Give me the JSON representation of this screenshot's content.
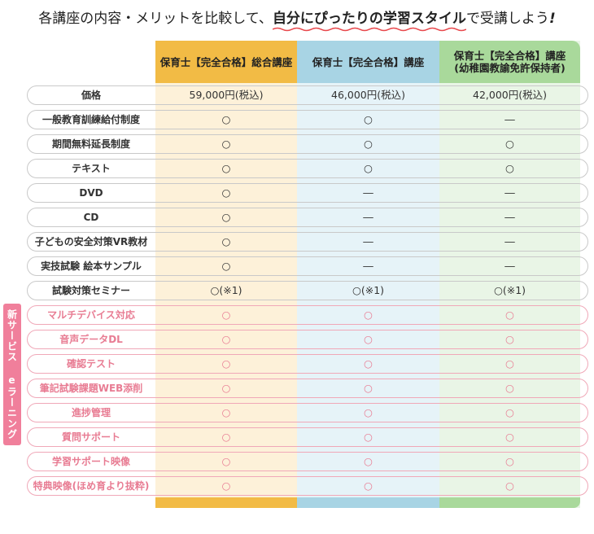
{
  "headline": {
    "prefix": "各講座の内容・メリットを比較して、",
    "highlight": "自分にぴったりの学習スタイル",
    "suffix": "で受講しよう",
    "exclaim": "!"
  },
  "columns": [
    {
      "title": "保育士【完全合格】総合講座"
    },
    {
      "title": "保育士【完全合格】講座"
    },
    {
      "title": "保育士【完全合格】講座\n(幼稚園教諭免許保持者)"
    }
  ],
  "side_tag": "新サービス eラーニング",
  "rows": [
    {
      "label": "価格",
      "values": [
        "59,000円(税込)",
        "46,000円(税込)",
        "42,000円(税込)"
      ],
      "pink": false
    },
    {
      "label": "一般教育訓練給付制度",
      "values": [
        "○",
        "○",
        "―"
      ],
      "pink": false
    },
    {
      "label": "期間無料延長制度",
      "values": [
        "○",
        "○",
        "○"
      ],
      "pink": false
    },
    {
      "label": "テキスト",
      "values": [
        "○",
        "○",
        "○"
      ],
      "pink": false
    },
    {
      "label": "DVD",
      "values": [
        "○",
        "―",
        "―"
      ],
      "pink": false
    },
    {
      "label": "CD",
      "values": [
        "○",
        "―",
        "―"
      ],
      "pink": false
    },
    {
      "label": "子どもの安全対策VR教材",
      "values": [
        "○",
        "―",
        "―"
      ],
      "pink": false
    },
    {
      "label": "実技試験 絵本サンプル",
      "values": [
        "○",
        "―",
        "―"
      ],
      "pink": false
    },
    {
      "label": "試験対策セミナー",
      "values": [
        "○(※1)",
        "○(※1)",
        "○(※1)"
      ],
      "pink": false
    },
    {
      "label": "マルチデバイス対応",
      "values": [
        "○",
        "○",
        "○"
      ],
      "pink": true
    },
    {
      "label": "音声データDL",
      "values": [
        "○",
        "○",
        "○"
      ],
      "pink": true
    },
    {
      "label": "確認テスト",
      "values": [
        "○",
        "○",
        "○"
      ],
      "pink": true
    },
    {
      "label": "筆記試験課題WEB添削",
      "values": [
        "○",
        "○",
        "○"
      ],
      "pink": true
    },
    {
      "label": "進捗管理",
      "values": [
        "○",
        "○",
        "○"
      ],
      "pink": true
    },
    {
      "label": "質問サポート",
      "values": [
        "○",
        "○",
        "○"
      ],
      "pink": true
    },
    {
      "label": "学習サポート映像",
      "values": [
        "○",
        "○",
        "○"
      ],
      "pink": true
    },
    {
      "label": "特典映像(ほめ育より抜粋)",
      "values": [
        "○",
        "○",
        "○"
      ],
      "pink": true
    }
  ],
  "colors": {
    "col1": "#f2bb45",
    "col2": "#a8d4e4",
    "col3": "#a9d99b",
    "accent": "#f07f9b"
  }
}
